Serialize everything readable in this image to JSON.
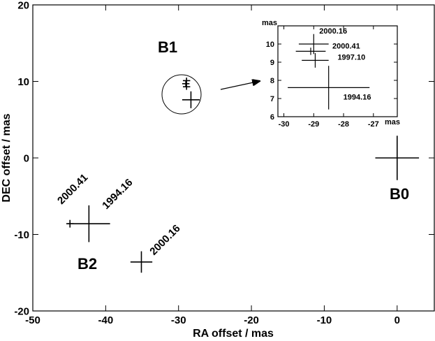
{
  "chart_data": [
    {
      "type": "scatter",
      "xlabel": "RA offset / mas",
      "ylabel": "DEC offset / mas",
      "xlim": [
        -50,
        5.1
      ],
      "ylim": [
        -20,
        20
      ],
      "xticks": [
        -50,
        -40,
        -30,
        -20,
        -10,
        0
      ],
      "yticks": [
        -20,
        -10,
        0,
        10,
        20
      ],
      "series": [
        {
          "name": "B0",
          "color": "#000000",
          "x": [
            0
          ],
          "y": [
            0
          ],
          "xerr": [
            3
          ],
          "yerr": [
            2.9
          ],
          "labels": [
            null
          ]
        },
        {
          "name": "B1",
          "color": "#000000",
          "x": [
            -28.9,
            -29,
            -28.9,
            -28.3
          ],
          "y": [
            10.1,
            9.7,
            9.3,
            7.6
          ],
          "xerr": [
            0.5,
            0.5,
            0.5,
            1.2
          ],
          "yerr": [
            0.4,
            0.4,
            0.4,
            1.1
          ],
          "labels": [
            null,
            null,
            null,
            null
          ]
        },
        {
          "name": "B2",
          "color": "#000000",
          "x": [
            -42.3,
            -44.9,
            -35.1
          ],
          "y": [
            -8.6,
            -8.6,
            -13.6
          ],
          "xerr": [
            2.9,
            0.5,
            1.5
          ],
          "yerr": [
            2.4,
            0.5,
            1.4
          ],
          "labels": [
            "1994.16",
            "2000.41",
            "2000.16"
          ]
        }
      ]
    },
    {
      "type": "scatter",
      "xlabel": "mas",
      "ylabel": "mas",
      "xlim": [
        -30.2,
        -26.2
      ],
      "ylim": [
        6,
        11
      ],
      "xticks": [
        -30,
        -29,
        -28,
        -27
      ],
      "yticks": [
        6,
        7,
        8,
        9,
        10
      ],
      "series": [
        {
          "color": "#000000",
          "x": [
            -29.0,
            -29.1,
            -28.95,
            -28.5
          ],
          "y": [
            10.0,
            9.6,
            9.1,
            7.6
          ],
          "xerr": [
            0.5,
            0.5,
            0.45,
            1.37
          ],
          "yerr": [
            0.55,
            0.2,
            0.4,
            1.2
          ],
          "labels": [
            "2000.16",
            "2000.41",
            "1997.10",
            "1994.16"
          ]
        }
      ]
    }
  ]
}
